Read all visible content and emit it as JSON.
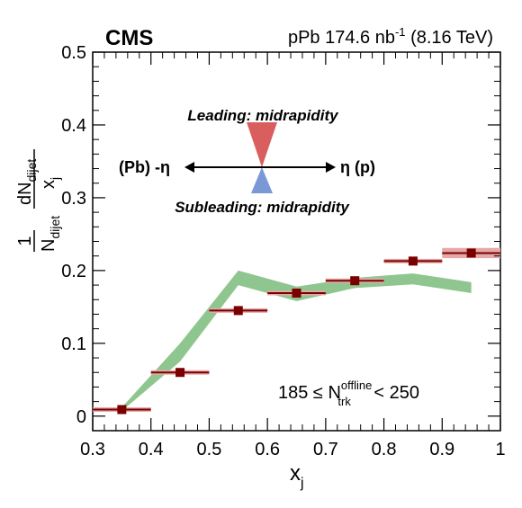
{
  "chart_data": {
    "type": "scatter",
    "experiment": "CMS",
    "dataset": {
      "system": "pPb",
      "lumi": "174.6 nb",
      "lumi_unit_sup": "-1",
      "energy": "(8.16 TeV)"
    },
    "xlabel": {
      "main": "x",
      "sub": "j"
    },
    "ylabel": {
      "one": "1",
      "den_main": "N",
      "den_sub": "dijet",
      "num_main": "dN",
      "num_sub": "dijet",
      "dx_main": "x",
      "dx_sub": "j"
    },
    "xlim": [
      0.3,
      1.0
    ],
    "ylim": [
      -0.02,
      0.5
    ],
    "xticks": [
      "0.3",
      "0.4",
      "0.5",
      "0.6",
      "0.7",
      "0.8",
      "0.9",
      "1"
    ],
    "yticks": [
      "0",
      "0.1",
      "0.2",
      "0.3",
      "0.4",
      "0.5"
    ],
    "points": [
      {
        "x": 0.35,
        "y": 0.009,
        "xerr": 0.05,
        "syst": 0.003
      },
      {
        "x": 0.45,
        "y": 0.06,
        "xerr": 0.05,
        "syst": 0.002
      },
      {
        "x": 0.55,
        "y": 0.145,
        "xerr": 0.05,
        "syst": 0.002
      },
      {
        "x": 0.65,
        "y": 0.169,
        "xerr": 0.05,
        "syst": 0.002
      },
      {
        "x": 0.75,
        "y": 0.186,
        "xerr": 0.05,
        "syst": 0.002
      },
      {
        "x": 0.85,
        "y": 0.213,
        "xerr": 0.05,
        "syst": 0.002
      },
      {
        "x": 0.95,
        "y": 0.224,
        "xerr": 0.05,
        "syst": 0.007
      }
    ],
    "band": [
      {
        "x": 0.35,
        "lo": 0.007,
        "hi": 0.012
      },
      {
        "x": 0.45,
        "lo": 0.075,
        "hi": 0.1
      },
      {
        "x": 0.55,
        "lo": 0.18,
        "hi": 0.2
      },
      {
        "x": 0.65,
        "lo": 0.158,
        "hi": 0.178
      },
      {
        "x": 0.75,
        "lo": 0.176,
        "hi": 0.19
      },
      {
        "x": 0.85,
        "lo": 0.181,
        "hi": 0.196
      },
      {
        "x": 0.95,
        "lo": 0.169,
        "hi": 0.184
      }
    ],
    "annotations": {
      "leading": "Leading: midrapidity",
      "subleading": "Subleading: midrapidity",
      "left_label": "(Pb) -η",
      "right_label": "η (p)",
      "selection": {
        "pre": "185 ≤ N",
        "sup": "offline",
        "sub": "trk",
        "post": "< 250"
      }
    },
    "colors": {
      "points": "#7a0000",
      "syst_box": "#e6a9a9",
      "band": "#8fc68f",
      "leading": "#d95f5f",
      "subleading": "#7b98d6"
    }
  }
}
